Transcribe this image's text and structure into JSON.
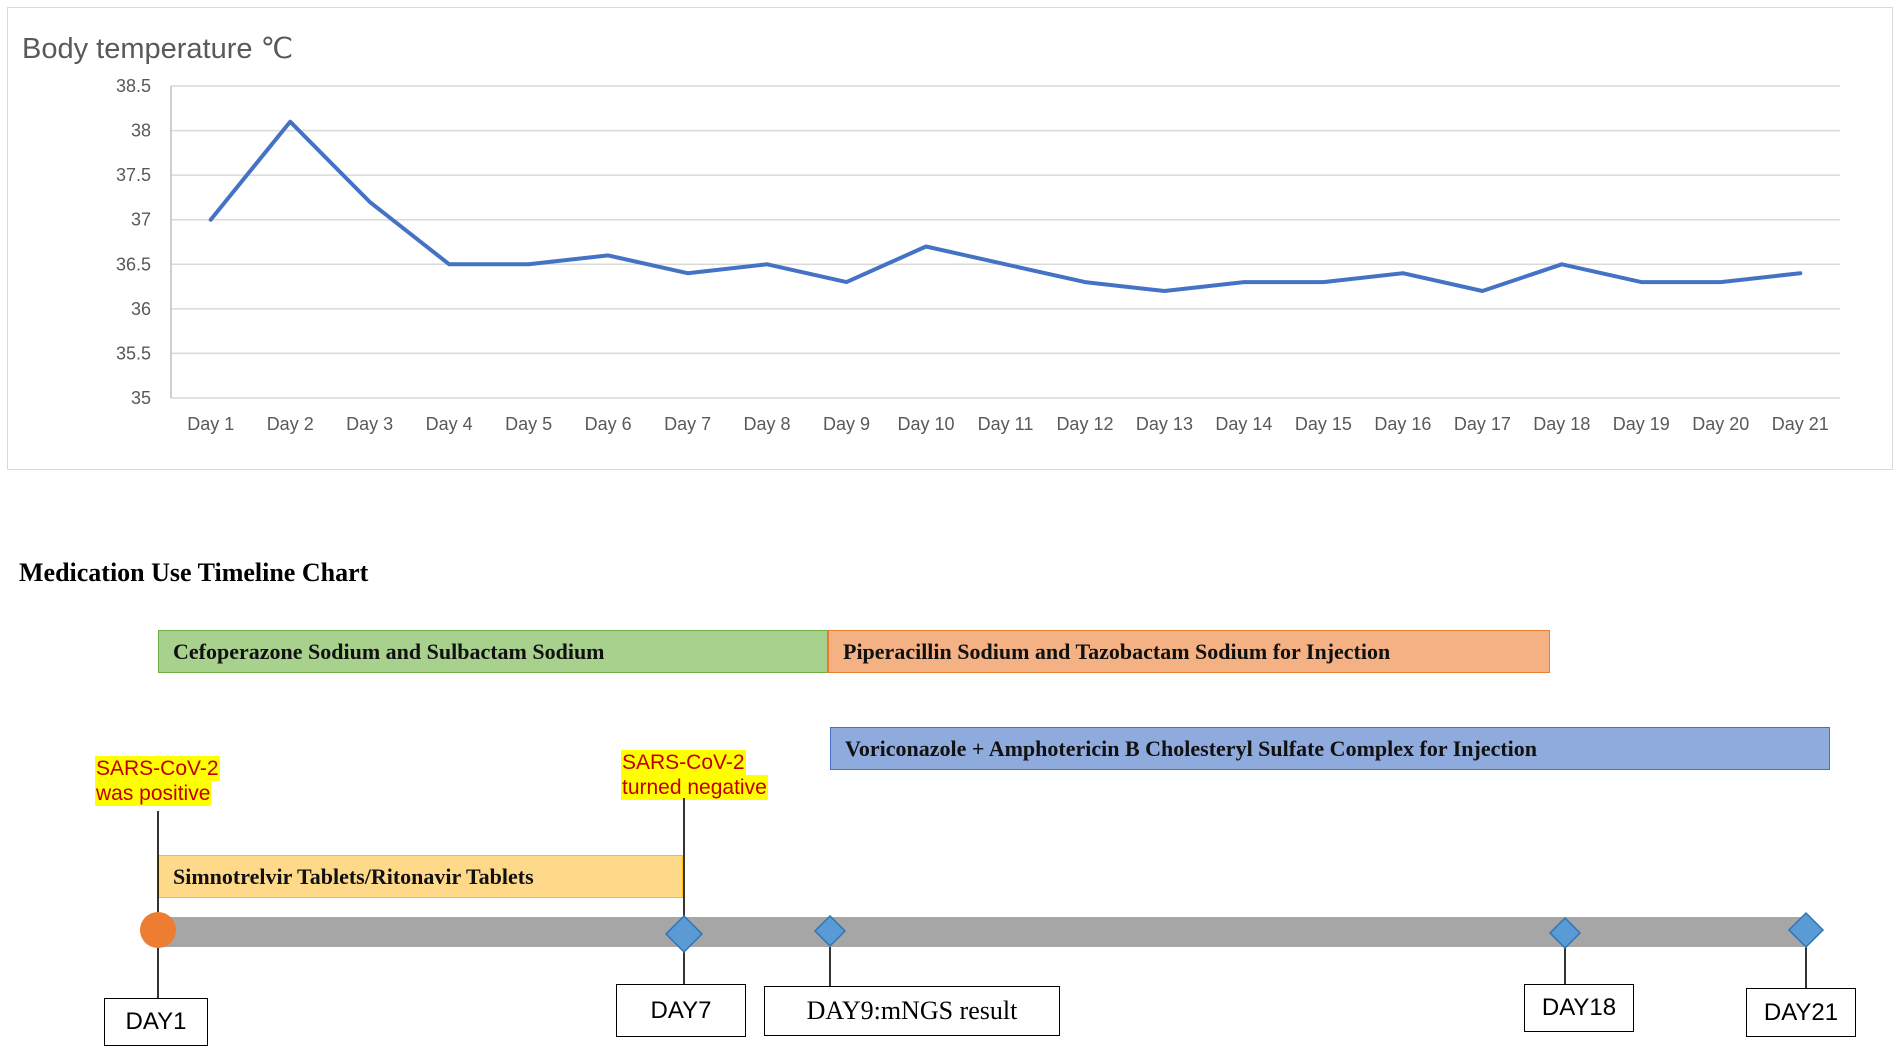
{
  "chart_data": {
    "type": "line",
    "title": "Body temperature ℃",
    "categories": [
      "Day 1",
      "Day 2",
      "Day 3",
      "Day 4",
      "Day 5",
      "Day 6",
      "Day 7",
      "Day 8",
      "Day 9",
      "Day 10",
      "Day 11",
      "Day 12",
      "Day 13",
      "Day 14",
      "Day 15",
      "Day 16",
      "Day 17",
      "Day 18",
      "Day 19",
      "Day 20",
      "Day 21"
    ],
    "y_ticks": [
      "35",
      "35.5",
      "36",
      "36.5",
      "37",
      "37.5",
      "38",
      "38.5"
    ],
    "series": [
      {
        "values": [
          37.0,
          38.1,
          37.2,
          36.5,
          36.5,
          36.6,
          36.4,
          36.5,
          36.3,
          36.7,
          36.5,
          36.3,
          36.2,
          36.3,
          36.3,
          36.4,
          36.2,
          36.5,
          36.3,
          36.3,
          36.4
        ]
      }
    ],
    "ylim": [
      35,
      38.5
    ],
    "grid": true,
    "color": "#4472c4"
  },
  "timeline": {
    "title": "Medication Use Timeline Chart",
    "drugs": {
      "cefoperazone": "Cefoperazone Sodium and Sulbactam Sodium",
      "piperacillin": "Piperacillin Sodium and Tazobactam Sodium for Injection",
      "voriconazole": "Voriconazole + Amphotericin B Cholesteryl Sulfate Complex for Injection",
      "simnotrelvir": "Simnotrelvir Tablets/Ritonavir Tablets"
    },
    "notes": {
      "positive_line1": "SARS-CoV-2",
      "positive_line2": "was positive",
      "negative_line1": "SARS-CoV-2",
      "negative_line2": "turned negative"
    },
    "days": {
      "day1": "DAY1",
      "day7": "DAY7",
      "day9": "DAY9:mNGS result",
      "day18": "DAY18",
      "day21": "DAY21"
    },
    "colors": {
      "green": "#a9d18e",
      "orange": "#f4b183",
      "blue": "#8faadc",
      "yellow": "#ffd98a",
      "track": "#a6a6a6",
      "circle": "#ed7d31",
      "diamond": "#5b9bd5"
    }
  }
}
